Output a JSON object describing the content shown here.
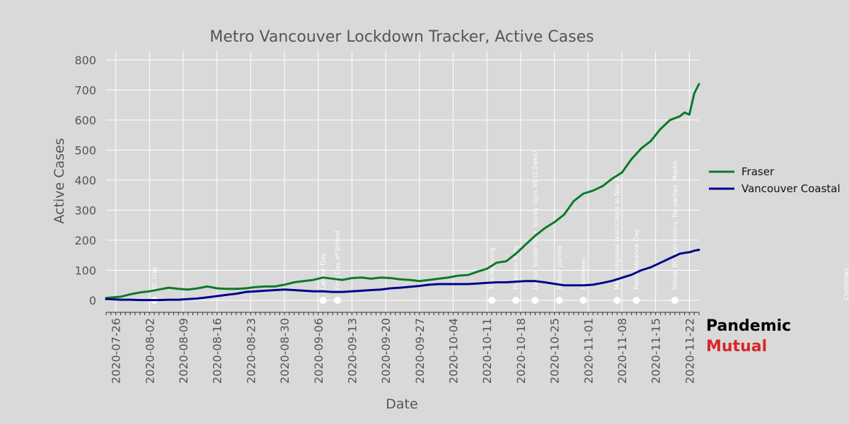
{
  "colors": {
    "background": "#d9d9d9",
    "plot_background": "#d9d9d9",
    "grid": "#ffffff",
    "text": "#555555",
    "fraser": "#0a7a28",
    "vancouver_coastal": "#00008b",
    "event_marker": "#ffffff",
    "brand_primary": "#000000",
    "brand_secondary": "#d62728"
  },
  "brand": {
    "line1": "Pandemic",
    "line2": "Mutual"
  },
  "chart_data": {
    "type": "line",
    "title": "Metro Vancouver Lockdown Tracker, Active Cases",
    "xlabel": "Date",
    "ylabel": "Active Cases",
    "xlim": [
      "2020-07-24",
      "2020-11-24"
    ],
    "ylim": [
      -40,
      830
    ],
    "yticks": [
      0,
      100,
      200,
      300,
      400,
      500,
      600,
      700,
      800
    ],
    "xticks": [
      "2020-07-26",
      "2020-08-02",
      "2020-08-09",
      "2020-08-16",
      "2020-08-23",
      "2020-08-30",
      "2020-09-06",
      "2020-09-13",
      "2020-09-20",
      "2020-09-27",
      "2020-10-04",
      "2020-10-11",
      "2020-10-18",
      "2020-10-25",
      "2020-11-01",
      "2020-11-08",
      "2020-11-15",
      "2020-11-22"
    ],
    "grid": true,
    "legend_position": "right",
    "series": [
      {
        "name": "Fraser",
        "color": "#0a7a28",
        "dates": [
          "2020-07-24",
          "2020-07-27",
          "2020-07-29",
          "2020-07-31",
          "2020-08-02",
          "2020-08-04",
          "2020-08-06",
          "2020-08-08",
          "2020-08-10",
          "2020-08-12",
          "2020-08-14",
          "2020-08-16",
          "2020-08-18",
          "2020-08-20",
          "2020-08-22",
          "2020-08-24",
          "2020-08-26",
          "2020-08-28",
          "2020-08-30",
          "2020-09-01",
          "2020-09-03",
          "2020-09-05",
          "2020-09-07",
          "2020-09-09",
          "2020-09-11",
          "2020-09-13",
          "2020-09-15",
          "2020-09-17",
          "2020-09-19",
          "2020-09-21",
          "2020-09-23",
          "2020-09-25",
          "2020-09-27",
          "2020-09-29",
          "2020-10-01",
          "2020-10-03",
          "2020-10-05",
          "2020-10-07",
          "2020-10-09",
          "2020-10-11",
          "2020-10-13",
          "2020-10-15",
          "2020-10-17",
          "2020-10-19",
          "2020-10-21",
          "2020-10-23",
          "2020-10-25",
          "2020-10-27",
          "2020-10-29",
          "2020-10-31",
          "2020-11-02",
          "2020-11-04",
          "2020-11-06",
          "2020-11-08",
          "2020-11-10",
          "2020-11-12",
          "2020-11-14",
          "2020-11-16",
          "2020-11-18",
          "2020-11-20",
          "2020-11-21",
          "2020-11-22",
          "2020-11-23",
          "2020-11-24"
        ],
        "values": [
          8,
          12,
          20,
          26,
          30,
          36,
          42,
          38,
          36,
          40,
          46,
          40,
          38,
          38,
          40,
          44,
          46,
          46,
          52,
          60,
          64,
          68,
          76,
          72,
          68,
          74,
          76,
          72,
          76,
          74,
          70,
          68,
          64,
          68,
          72,
          76,
          82,
          84,
          95,
          105,
          125,
          130,
          155,
          185,
          215,
          240,
          260,
          285,
          330,
          355,
          365,
          380,
          405,
          425,
          470,
          505,
          530,
          570,
          600,
          612,
          625,
          618,
          688,
          720
        ]
      },
      {
        "name": "Vancouver Coastal",
        "color": "#00008b",
        "dates": [
          "2020-07-24",
          "2020-07-27",
          "2020-07-29",
          "2020-07-31",
          "2020-08-02",
          "2020-08-04",
          "2020-08-06",
          "2020-08-08",
          "2020-08-10",
          "2020-08-12",
          "2020-08-14",
          "2020-08-16",
          "2020-08-18",
          "2020-08-20",
          "2020-08-22",
          "2020-08-24",
          "2020-08-26",
          "2020-08-28",
          "2020-08-30",
          "2020-09-01",
          "2020-09-03",
          "2020-09-05",
          "2020-09-07",
          "2020-09-09",
          "2020-09-11",
          "2020-09-13",
          "2020-09-15",
          "2020-09-17",
          "2020-09-19",
          "2020-09-21",
          "2020-09-23",
          "2020-09-25",
          "2020-09-27",
          "2020-09-29",
          "2020-10-01",
          "2020-10-03",
          "2020-10-05",
          "2020-10-07",
          "2020-10-09",
          "2020-10-11",
          "2020-10-13",
          "2020-10-15",
          "2020-10-17",
          "2020-10-19",
          "2020-10-21",
          "2020-10-23",
          "2020-10-25",
          "2020-10-27",
          "2020-10-29",
          "2020-10-31",
          "2020-11-02",
          "2020-11-04",
          "2020-11-06",
          "2020-11-08",
          "2020-11-10",
          "2020-11-12",
          "2020-11-14",
          "2020-11-16",
          "2020-11-18",
          "2020-11-20",
          "2020-11-21",
          "2020-11-22",
          "2020-11-23",
          "2020-11-24"
        ],
        "values": [
          4,
          2,
          2,
          1,
          1,
          1,
          2,
          2,
          4,
          6,
          10,
          14,
          18,
          22,
          28,
          30,
          32,
          34,
          36,
          34,
          32,
          30,
          30,
          28,
          28,
          30,
          32,
          34,
          36,
          40,
          42,
          45,
          48,
          52,
          54,
          54,
          54,
          54,
          56,
          58,
          60,
          60,
          62,
          64,
          64,
          60,
          55,
          50,
          50,
          50,
          52,
          58,
          65,
          75,
          85,
          100,
          110,
          125,
          140,
          155,
          158,
          160,
          165,
          168
        ]
      }
    ],
    "annotations": [
      {
        "date": "2020-08-03",
        "label": "BC Day"
      },
      {
        "date": "2020-09-07",
        "label": "Labour Day"
      },
      {
        "date": "2020-09-10",
        "label": "First Day of School"
      },
      {
        "date": "2020-10-12",
        "label": "Thanksgiving"
      },
      {
        "date": "2020-10-17",
        "label": "Freedom Rally"
      },
      {
        "date": "2020-10-21",
        "label": "Dance Studio SS + Surrey Gym SS (2.5wks)"
      },
      {
        "date": "2020-10-26",
        "label": "Indoor parties"
      },
      {
        "date": "2020-10-31",
        "label": "Halloween"
      },
      {
        "date": "2020-11-07",
        "label": "Metro regional restrictions to Nov 23"
      },
      {
        "date": "2020-11-11",
        "label": "Remembrance Day"
      },
      {
        "date": "2020-11-19",
        "label": "Whole BC restrictions. No parties. Masks."
      },
      {
        "date": "2020-12-25",
        "label": "Christmas"
      }
    ]
  }
}
